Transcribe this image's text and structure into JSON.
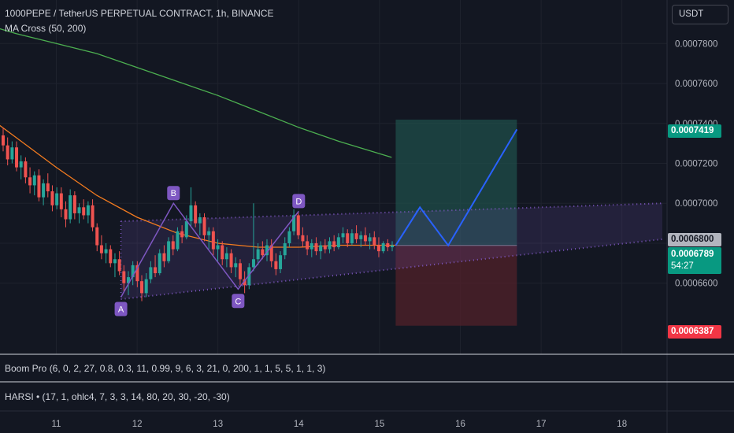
{
  "header": {
    "title": "1000PEPE / TetherUS PERPETUAL CONTRACT, 1h, BINANCE",
    "indicator": "MA Cross (50, 200)",
    "currency": "USDT"
  },
  "panes": {
    "boom": "Boom Pro (6, 0, 2, 27, 0.8, 0.3, 11, 0.99, 9, 6, 3, 21, 0, 200, 1, 1, 5, 5, 1, 1, 3)",
    "harsi": "HARSI • (17, 1, ohlc4, 7, 3, 3, 14, 80, 20, 30, -20, -30)"
  },
  "badges": {
    "take_profit": "0.0007419",
    "reference": "0.0006800",
    "current_price": "0.0006789",
    "countdown": "54:27",
    "stop_loss": "0.0006387"
  },
  "colors": {
    "up": "#26a69a",
    "down": "#ef5350",
    "ma_fast": "#f57c1f",
    "ma_slow": "#4caf50",
    "pattern": "#7e57c2",
    "projection": "#2962ff",
    "target_zone": "#1f4d4a",
    "stop_zone": "#4d2029"
  },
  "chart_data": {
    "type": "candlestick",
    "symbol": "1000PEPE / TetherUS PERPETUAL CONTRACT",
    "interval": "1h",
    "exchange": "BINANCE",
    "x_ticks": [
      "11",
      "12",
      "13",
      "14",
      "15",
      "16",
      "17",
      "18"
    ],
    "y_ticks": [
      "0.0006600",
      "0.0006800",
      "0.0007000",
      "0.0007200",
      "0.0007400",
      "0.0007600",
      "0.0007800"
    ],
    "ylim": [
      0.0006244,
      0.0007951
    ],
    "pattern_points": [
      {
        "label": "A",
        "day": 11.8,
        "price": 0.000653
      },
      {
        "label": "B",
        "day": 12.45,
        "price": 0.0007
      },
      {
        "label": "C",
        "day": 13.25,
        "price": 0.000657
      },
      {
        "label": "D",
        "day": 14.0,
        "price": 0.000696
      }
    ],
    "position": {
      "entry": 0.0006789,
      "target": 0.0007419,
      "stop": 0.0006387,
      "day_range": [
        15.2,
        16.7
      ]
    },
    "projection_path": [
      {
        "day": 15.2,
        "price": 0.0006789
      },
      {
        "day": 15.5,
        "price": 0.000698
      },
      {
        "day": 15.85,
        "price": 0.0006789
      },
      {
        "day": 16.7,
        "price": 0.000737
      }
    ],
    "ma_fast": [
      {
        "day": 10.0,
        "price": 0.000748
      },
      {
        "day": 10.5,
        "price": 0.000733
      },
      {
        "day": 11.0,
        "price": 0.000718
      },
      {
        "day": 11.5,
        "price": 0.000704
      },
      {
        "day": 12.0,
        "price": 0.000693
      },
      {
        "day": 12.5,
        "price": 0.000685
      },
      {
        "day": 13.0,
        "price": 0.00068
      },
      {
        "day": 13.5,
        "price": 0.000678
      },
      {
        "day": 14.0,
        "price": 0.000678
      },
      {
        "day": 14.5,
        "price": 0.000679
      },
      {
        "day": 15.2,
        "price": 0.000679
      }
    ],
    "ma_slow": [
      {
        "day": 10.0,
        "price": 0.000791
      },
      {
        "day": 10.5,
        "price": 0.000785
      },
      {
        "day": 11.0,
        "price": 0.00078
      },
      {
        "day": 11.5,
        "price": 0.000775
      },
      {
        "day": 12.0,
        "price": 0.000768
      },
      {
        "day": 12.5,
        "price": 0.000761
      },
      {
        "day": 13.0,
        "price": 0.000754
      },
      {
        "day": 13.5,
        "price": 0.000746
      },
      {
        "day": 14.0,
        "price": 0.000738
      },
      {
        "day": 14.5,
        "price": 0.000731
      },
      {
        "day": 15.15,
        "price": 0.000723
      }
    ],
    "channel": {
      "upper": [
        {
          "day": 11.8,
          "price": 0.000691
        },
        {
          "day": 18.5,
          "price": 0.0007
        }
      ],
      "lower": [
        {
          "day": 11.8,
          "price": 0.000652
        },
        {
          "day": 18.5,
          "price": 0.000682
        }
      ]
    },
    "candles": [
      {
        "o": 0.000734,
        "h": 0.000738,
        "l": 0.000726,
        "c": 0.000729
      },
      {
        "o": 0.000729,
        "h": 0.000733,
        "l": 0.000719,
        "c": 0.000722
      },
      {
        "o": 0.000722,
        "h": 0.000731,
        "l": 0.00072,
        "c": 0.000728
      },
      {
        "o": 0.000728,
        "h": 0.000731,
        "l": 0.000716,
        "c": 0.000718
      },
      {
        "o": 0.000718,
        "h": 0.000724,
        "l": 0.000712,
        "c": 0.000721
      },
      {
        "o": 0.000721,
        "h": 0.000723,
        "l": 0.00071,
        "c": 0.000713
      },
      {
        "o": 0.000713,
        "h": 0.000718,
        "l": 0.000705,
        "c": 0.000709
      },
      {
        "o": 0.000709,
        "h": 0.000716,
        "l": 0.000704,
        "c": 0.000714
      },
      {
        "o": 0.000714,
        "h": 0.000717,
        "l": 0.000701,
        "c": 0.000703
      },
      {
        "o": 0.000703,
        "h": 0.000712,
        "l": 0.000699,
        "c": 0.00071
      },
      {
        "o": 0.00071,
        "h": 0.000715,
        "l": 0.000703,
        "c": 0.000706
      },
      {
        "o": 0.000706,
        "h": 0.000709,
        "l": 0.000696,
        "c": 0.000699
      },
      {
        "o": 0.000699,
        "h": 0.000708,
        "l": 0.000697,
        "c": 0.000705
      },
      {
        "o": 0.000705,
        "h": 0.000708,
        "l": 0.000693,
        "c": 0.000697
      },
      {
        "o": 0.000697,
        "h": 0.000701,
        "l": 0.000688,
        "c": 0.000692
      },
      {
        "o": 0.000692,
        "h": 0.000707,
        "l": 0.00069,
        "c": 0.000704
      },
      {
        "o": 0.000704,
        "h": 0.000706,
        "l": 0.000692,
        "c": 0.000695
      },
      {
        "o": 0.000695,
        "h": 0.0007,
        "l": 0.00069,
        "c": 0.000698
      },
      {
        "o": 0.000698,
        "h": 0.000702,
        "l": 0.000692,
        "c": 0.000694
      },
      {
        "o": 0.000694,
        "h": 0.000701,
        "l": 0.00069,
        "c": 0.000699
      },
      {
        "o": 0.000699,
        "h": 0.000702,
        "l": 0.000686,
        "c": 0.000688
      },
      {
        "o": 0.000688,
        "h": 0.00069,
        "l": 0.000676,
        "c": 0.000679
      },
      {
        "o": 0.000679,
        "h": 0.000684,
        "l": 0.000672,
        "c": 0.000675
      },
      {
        "o": 0.000675,
        "h": 0.00068,
        "l": 0.00067,
        "c": 0.000677
      },
      {
        "o": 0.000677,
        "h": 0.000679,
        "l": 0.000668,
        "c": 0.00067
      },
      {
        "o": 0.00067,
        "h": 0.000675,
        "l": 0.000663,
        "c": 0.000672
      },
      {
        "o": 0.000672,
        "h": 0.000676,
        "l": 0.000664,
        "c": 0.000666
      },
      {
        "o": 0.000666,
        "h": 0.000669,
        "l": 0.000656,
        "c": 0.00066
      },
      {
        "o": 0.00066,
        "h": 0.000666,
        "l": 0.000654,
        "c": 0.000663
      },
      {
        "o": 0.000663,
        "h": 0.000671,
        "l": 0.000659,
        "c": 0.000669
      },
      {
        "o": 0.000669,
        "h": 0.000671,
        "l": 0.000658,
        "c": 0.000661
      },
      {
        "o": 0.000661,
        "h": 0.000664,
        "l": 0.000651,
        "c": 0.000655
      },
      {
        "o": 0.000655,
        "h": 0.000665,
        "l": 0.000653,
        "c": 0.000662
      },
      {
        "o": 0.000662,
        "h": 0.000671,
        "l": 0.00066,
        "c": 0.000668
      },
      {
        "o": 0.000668,
        "h": 0.000674,
        "l": 0.000663,
        "c": 0.000665
      },
      {
        "o": 0.000665,
        "h": 0.000677,
        "l": 0.000664,
        "c": 0.000675
      },
      {
        "o": 0.000675,
        "h": 0.000679,
        "l": 0.000668,
        "c": 0.000671
      },
      {
        "o": 0.000671,
        "h": 0.000683,
        "l": 0.00067,
        "c": 0.000681
      },
      {
        "o": 0.000681,
        "h": 0.000684,
        "l": 0.000674,
        "c": 0.000677
      },
      {
        "o": 0.000677,
        "h": 0.000688,
        "l": 0.000676,
        "c": 0.000686
      },
      {
        "o": 0.000686,
        "h": 0.000689,
        "l": 0.00068,
        "c": 0.000683
      },
      {
        "o": 0.000683,
        "h": 0.000694,
        "l": 0.000682,
        "c": 0.000691
      },
      {
        "o": 0.000691,
        "h": 0.000708,
        "l": 0.000688,
        "c": 0.000699
      },
      {
        "o": 0.000699,
        "h": 0.000701,
        "l": 0.000688,
        "c": 0.00069
      },
      {
        "o": 0.00069,
        "h": 0.000695,
        "l": 0.000684,
        "c": 0.000693
      },
      {
        "o": 0.000693,
        "h": 0.000695,
        "l": 0.000681,
        "c": 0.000684
      },
      {
        "o": 0.000684,
        "h": 0.000688,
        "l": 0.000677,
        "c": 0.000686
      },
      {
        "o": 0.000686,
        "h": 0.000688,
        "l": 0.000674,
        "c": 0.000677
      },
      {
        "o": 0.000677,
        "h": 0.000682,
        "l": 0.000671,
        "c": 0.000679
      },
      {
        "o": 0.000679,
        "h": 0.000681,
        "l": 0.000669,
        "c": 0.000672
      },
      {
        "o": 0.000672,
        "h": 0.000678,
        "l": 0.000668,
        "c": 0.000675
      },
      {
        "o": 0.000675,
        "h": 0.000677,
        "l": 0.000665,
        "c": 0.000668
      },
      {
        "o": 0.000668,
        "h": 0.000673,
        "l": 0.000663,
        "c": 0.00067
      },
      {
        "o": 0.00067,
        "h": 0.000672,
        "l": 0.000659,
        "c": 0.000662
      },
      {
        "o": 0.000662,
        "h": 0.000666,
        "l": 0.000655,
        "c": 0.000659
      },
      {
        "o": 0.000659,
        "h": 0.00067,
        "l": 0.000657,
        "c": 0.000668
      },
      {
        "o": 0.000668,
        "h": 0.0007,
        "l": 0.000666,
        "c": 0.000672
      },
      {
        "o": 0.000672,
        "h": 0.00068,
        "l": 0.000669,
        "c": 0.000677
      },
      {
        "o": 0.000677,
        "h": 0.000681,
        "l": 0.000672,
        "c": 0.000674
      },
      {
        "o": 0.000674,
        "h": 0.000682,
        "l": 0.000671,
        "c": 0.000679
      },
      {
        "o": 0.000679,
        "h": 0.000682,
        "l": 0.000668,
        "c": 0.000671
      },
      {
        "o": 0.000671,
        "h": 0.000675,
        "l": 0.000664,
        "c": 0.000667
      },
      {
        "o": 0.000667,
        "h": 0.000676,
        "l": 0.000665,
        "c": 0.000674
      },
      {
        "o": 0.000674,
        "h": 0.000683,
        "l": 0.000672,
        "c": 0.00068
      },
      {
        "o": 0.00068,
        "h": 0.000688,
        "l": 0.000678,
        "c": 0.000686
      },
      {
        "o": 0.000686,
        "h": 0.000697,
        "l": 0.000684,
        "c": 0.000694
      },
      {
        "o": 0.000694,
        "h": 0.000696,
        "l": 0.000682,
        "c": 0.000684
      },
      {
        "o": 0.000684,
        "h": 0.000688,
        "l": 0.000678,
        "c": 0.000681
      },
      {
        "o": 0.000681,
        "h": 0.000684,
        "l": 0.000674,
        "c": 0.000677
      },
      {
        "o": 0.000677,
        "h": 0.000682,
        "l": 0.000673,
        "c": 0.00068
      },
      {
        "o": 0.00068,
        "h": 0.000683,
        "l": 0.000674,
        "c": 0.000676
      },
      {
        "o": 0.000676,
        "h": 0.000681,
        "l": 0.000672,
        "c": 0.000679
      },
      {
        "o": 0.000679,
        "h": 0.000682,
        "l": 0.000675,
        "c": 0.000677
      },
      {
        "o": 0.000677,
        "h": 0.000683,
        "l": 0.000675,
        "c": 0.000681
      },
      {
        "o": 0.000681,
        "h": 0.000684,
        "l": 0.000676,
        "c": 0.000678
      },
      {
        "o": 0.000678,
        "h": 0.000685,
        "l": 0.000677,
        "c": 0.000683
      },
      {
        "o": 0.000683,
        "h": 0.000688,
        "l": 0.00068,
        "c": 0.000685
      },
      {
        "o": 0.000685,
        "h": 0.000687,
        "l": 0.000678,
        "c": 0.00068
      },
      {
        "o": 0.00068,
        "h": 0.000687,
        "l": 0.000679,
        "c": 0.000685
      },
      {
        "o": 0.000685,
        "h": 0.000689,
        "l": 0.00068,
        "c": 0.000682
      },
      {
        "o": 0.000682,
        "h": 0.000686,
        "l": 0.000678,
        "c": 0.000684
      },
      {
        "o": 0.000684,
        "h": 0.000688,
        "l": 0.000679,
        "c": 0.000681
      },
      {
        "o": 0.000681,
        "h": 0.000685,
        "l": 0.000677,
        "c": 0.000683
      },
      {
        "o": 0.000683,
        "h": 0.000686,
        "l": 0.000677,
        "c": 0.000679
      },
      {
        "o": 0.000679,
        "h": 0.000683,
        "l": 0.000673,
        "c": 0.000676
      },
      {
        "o": 0.000676,
        "h": 0.000681,
        "l": 0.000675,
        "c": 0.00068
      },
      {
        "o": 0.00068,
        "h": 0.000682,
        "l": 0.000676,
        "c": 0.000678
      },
      {
        "o": 0.000678,
        "h": 0.000681,
        "l": 0.000676,
        "c": 0.000679
      }
    ]
  }
}
